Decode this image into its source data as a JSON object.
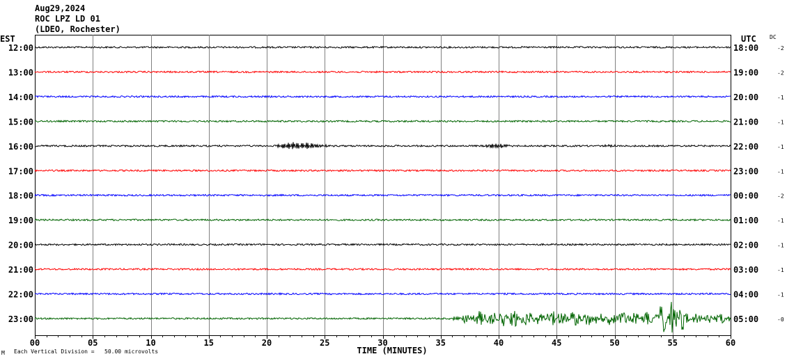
{
  "header": {
    "date": "Aug29,2024",
    "station": "ROC LPZ LD 01",
    "network": "(LDEO, Rochester)"
  },
  "left_axis_title": "EST",
  "right_axis_title": "UTC",
  "dc_title": "DC",
  "footer": {
    "corner_mark": "M",
    "scale_note": "Each Vertical Division =   50.00 microvolts"
  },
  "chart_data": {
    "type": "line",
    "subtype": "helicorder",
    "xlabel": "TIME (MINUTES)",
    "xlim": [
      0,
      60
    ],
    "x_ticks": [
      "00",
      "05",
      "10",
      "15",
      "20",
      "25",
      "30",
      "35",
      "40",
      "45",
      "50",
      "55",
      "60"
    ],
    "grid": "vertical every 5 minutes",
    "colors": [
      "#000000",
      "#ff0000",
      "#0000ff",
      "#006400"
    ],
    "rows": [
      {
        "est": "12:00",
        "utc": "18:00",
        "dc": "-2"
      },
      {
        "est": "13:00",
        "utc": "19:00",
        "dc": "-2"
      },
      {
        "est": "14:00",
        "utc": "20:00",
        "dc": "-1"
      },
      {
        "est": "15:00",
        "utc": "21:00",
        "dc": "-1"
      },
      {
        "est": "16:00",
        "utc": "22:00",
        "dc": "-1",
        "events": [
          {
            "start": 20.5,
            "end": 25.5,
            "amp": 6
          },
          {
            "start": 38.5,
            "end": 41.5,
            "amp": 3
          },
          {
            "start": 49,
            "end": 50.5,
            "amp": 2
          }
        ]
      },
      {
        "est": "17:00",
        "utc": "23:00",
        "dc": "-1"
      },
      {
        "est": "18:00",
        "utc": "00:00",
        "dc": "-2"
      },
      {
        "est": "19:00",
        "utc": "01:00",
        "dc": "-1"
      },
      {
        "est": "20:00",
        "utc": "02:00",
        "dc": "-1"
      },
      {
        "est": "21:00",
        "utc": "03:00",
        "dc": "-1"
      },
      {
        "est": "22:00",
        "utc": "04:00",
        "dc": "-1"
      },
      {
        "est": "23:00",
        "utc": "05:00",
        "dc": "-0",
        "events": [
          {
            "start": 35.6,
            "end": 60,
            "amp": 10
          },
          {
            "start": 53.8,
            "end": 56,
            "amp": 22
          }
        ]
      }
    ]
  }
}
